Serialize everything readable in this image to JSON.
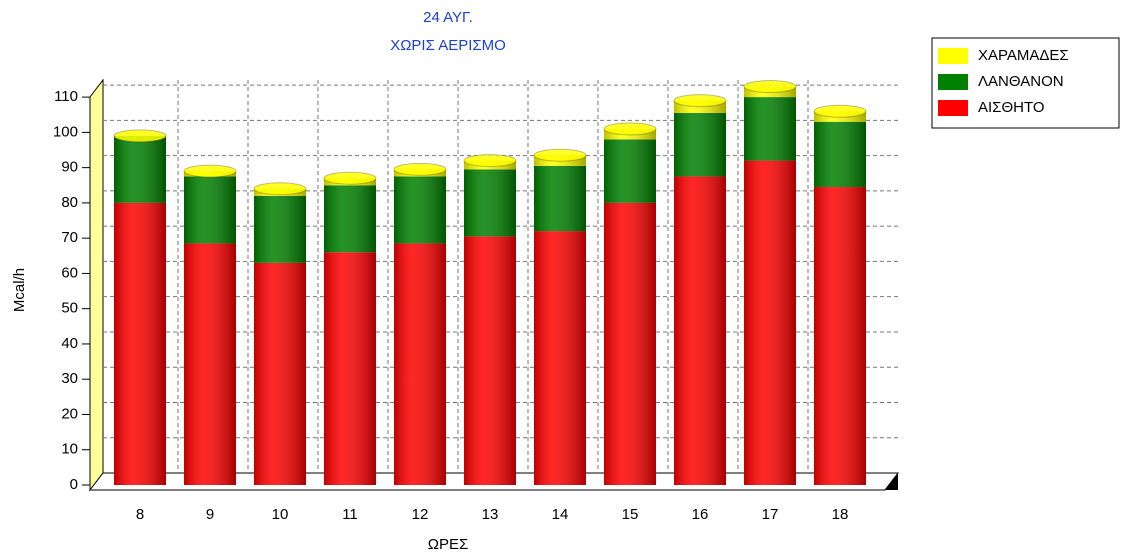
{
  "chart_data": {
    "type": "bar",
    "stacked": true,
    "title": [
      "24 ΑΥΓ.",
      "ΧΩΡΙΣ ΑΕΡΙΣΜΟ"
    ],
    "x_label": "ΩΡΕΣ",
    "y_label": "Mcal/h",
    "categories": [
      "8",
      "9",
      "10",
      "11",
      "12",
      "13",
      "14",
      "15",
      "16",
      "17",
      "18"
    ],
    "series": [
      {
        "name": "ΑΙΣΘΗΤΟ",
        "color": "#ff0000",
        "values": [
          80,
          68.5,
          63,
          66,
          68.5,
          70.5,
          72,
          80,
          87.5,
          92,
          84.5
        ]
      },
      {
        "name": "ΛΑΝΘΑΝΟΝ",
        "color": "#008000",
        "values": [
          19,
          19,
          19,
          19,
          19,
          19,
          18.5,
          18,
          18,
          18,
          18.5
        ]
      },
      {
        "name": "ΧΑΡΑΜΑΔΕΣ",
        "color": "#ffff00",
        "values": [
          0,
          1.5,
          2,
          2,
          2,
          2.5,
          3,
          3,
          3.5,
          3,
          3
        ]
      }
    ],
    "ylim": [
      0,
      114
    ],
    "yticks": [
      0,
      10,
      20,
      30,
      40,
      50,
      60,
      70,
      80,
      90,
      100,
      110
    ],
    "grid": true,
    "legend": "top-right"
  }
}
